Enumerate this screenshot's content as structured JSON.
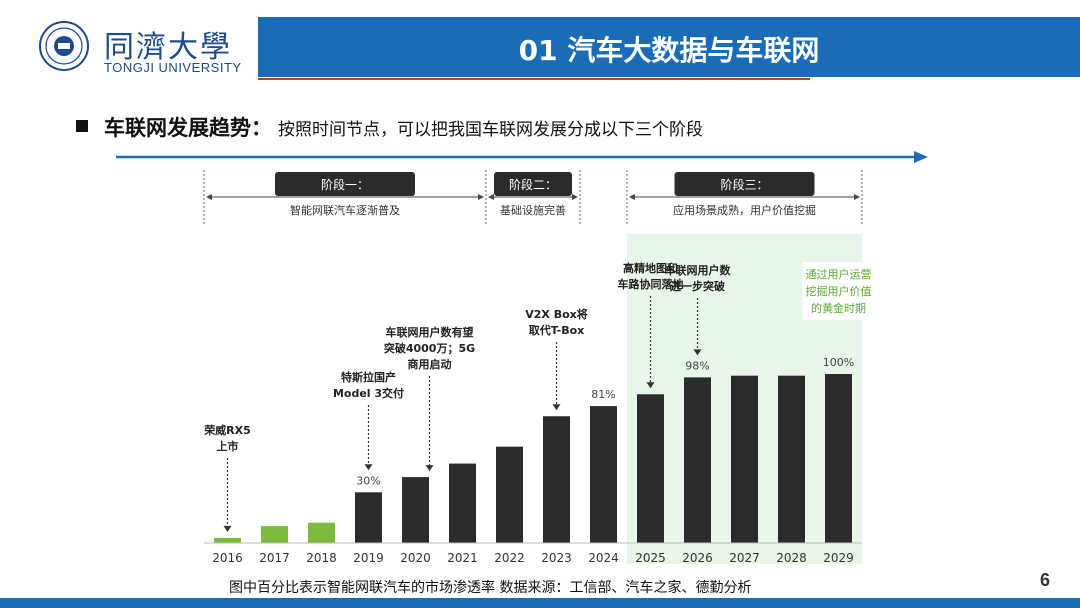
{
  "header": {
    "logo_cn": "同濟大學",
    "logo_en": "TONGJI UNIVERSITY",
    "title": "01 汽车大数据与车联网"
  },
  "headline": {
    "bold": "车联网发展趋势：",
    "text": "按照时间节点，可以把我国车联网发展分成以下三个阶段"
  },
  "caption": "图中百分比表示智能网联汽车的市场渗透率  数据来源：工信部、汽车之家、德勤分析",
  "page_number": "6",
  "colors": {
    "title_bar": "#1a6cb8",
    "green": "#7dbb3e",
    "dark": "#2b2b2b",
    "highlight": "#e8f5e9"
  },
  "chart_data": {
    "type": "bar",
    "categories": [
      "2016",
      "2017",
      "2018",
      "2019",
      "2020",
      "2021",
      "2022",
      "2023",
      "2024",
      "2025",
      "2026",
      "2027",
      "2028",
      "2029"
    ],
    "values": [
      3,
      10,
      12,
      30,
      39,
      47,
      57,
      75,
      81,
      88,
      98,
      99,
      99,
      100
    ],
    "ylim": [
      0,
      100
    ],
    "colored_green_years": [
      "2016",
      "2017",
      "2018"
    ],
    "value_labels": [
      {
        "category": "2019",
        "text": "30%"
      },
      {
        "category": "2024",
        "text": "81%"
      },
      {
        "category": "2026",
        "text": "98%"
      },
      {
        "category": "2029",
        "text": "100%"
      }
    ],
    "stages": [
      {
        "label": "阶段一：",
        "desc": "智能网联汽车逐渐普及",
        "from": "2016",
        "to": "2021"
      },
      {
        "label": "阶段二：",
        "desc": "基础设施完善",
        "from": "2022",
        "to": "2023"
      },
      {
        "label": "阶段三：",
        "desc": "应用场景成熟，用户价值挖掘",
        "from": "2025",
        "to": "2029"
      }
    ],
    "annotations": [
      {
        "category": "2016",
        "lines": [
          "荣威RX5",
          "上市"
        ]
      },
      {
        "category": "2019",
        "lines": [
          "特斯拉国产",
          "Model 3交付"
        ]
      },
      {
        "category": "2020",
        "lines": [
          "车联网用户数有望",
          "突破4000万；5G",
          "商用启动"
        ]
      },
      {
        "category": "2023",
        "lines": [
          "V2X Box将",
          "取代T-Box"
        ]
      },
      {
        "category": "2025",
        "lines": [
          "高精地图和",
          "车路协同落地"
        ]
      },
      {
        "category": "2026",
        "lines": [
          "车联网用户数",
          "进一步突破"
        ]
      }
    ],
    "highlight_note": {
      "lines": [
        "通过用户运营",
        "挖掘用户价值",
        "的黄金时期"
      ]
    }
  }
}
